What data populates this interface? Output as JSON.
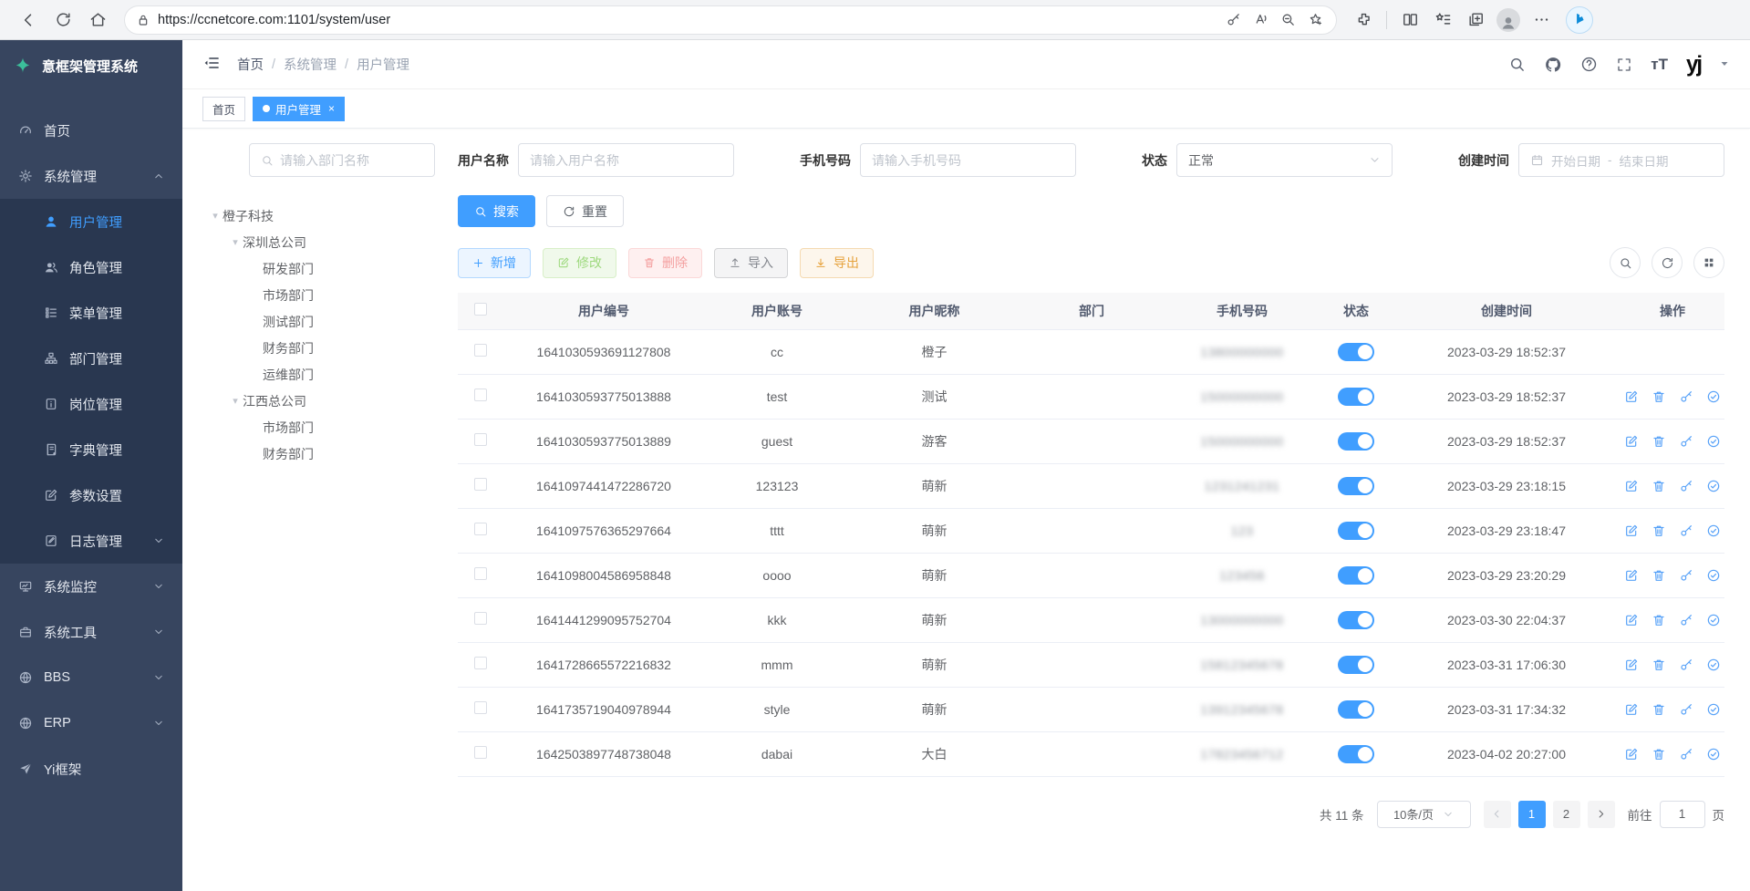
{
  "browser": {
    "url": "https://ccnetcore.com:1101/system/user",
    "left_icons": [
      "back",
      "reload",
      "home"
    ],
    "pill_icons": [
      "key",
      "readaloud",
      "zoomout",
      "starplus"
    ],
    "right_icons": [
      "extensions",
      "split",
      "favbar",
      "collections",
      "profile",
      "dots"
    ]
  },
  "brand": {
    "title": "意框架管理系统"
  },
  "sidebar": {
    "items": [
      {
        "label": "首页",
        "icon": "dashboard"
      },
      {
        "label": "系统管理",
        "icon": "gear",
        "open": true,
        "children": [
          {
            "label": "用户管理",
            "icon": "user",
            "active": true
          },
          {
            "label": "角色管理",
            "icon": "users"
          },
          {
            "label": "菜单管理",
            "icon": "menutree"
          },
          {
            "label": "部门管理",
            "icon": "org"
          },
          {
            "label": "岗位管理",
            "icon": "badge"
          },
          {
            "label": "字典管理",
            "icon": "dict"
          },
          {
            "label": "参数设置",
            "icon": "editsq"
          },
          {
            "label": "日志管理",
            "icon": "log",
            "arrow": "down"
          }
        ]
      },
      {
        "label": "系统监控",
        "icon": "monitor",
        "arrow": "down"
      },
      {
        "label": "系统工具",
        "icon": "tools",
        "arrow": "down"
      },
      {
        "label": "BBS",
        "icon": "globe",
        "arrow": "down"
      },
      {
        "label": "ERP",
        "icon": "globe",
        "arrow": "down"
      },
      {
        "label": "Yi框架",
        "icon": "send"
      }
    ]
  },
  "topbar": {
    "breadcrumb": [
      "首页",
      "系统管理",
      "用户管理"
    ]
  },
  "tabs": [
    {
      "label": "首页",
      "active": false
    },
    {
      "label": "用户管理",
      "active": true,
      "closable": true
    }
  ],
  "filters": {
    "dept_placeholder": "请输入部门名称",
    "username_label": "用户名称",
    "username_placeholder": "请输入用户名称",
    "phone_label": "手机号码",
    "phone_placeholder": "请输入手机号码",
    "status_label": "状态",
    "status_value": "正常",
    "created_label": "创建时间",
    "date_start": "开始日期",
    "date_sep": "-",
    "date_end": "结束日期",
    "search_label": "搜索",
    "reset_label": "重置"
  },
  "tree": [
    {
      "label": "橙子科技",
      "depth": 0,
      "expandable": true
    },
    {
      "label": "深圳总公司",
      "depth": 1,
      "expandable": true
    },
    {
      "label": "研发部门",
      "depth": 2
    },
    {
      "label": "市场部门",
      "depth": 2
    },
    {
      "label": "测试部门",
      "depth": 2
    },
    {
      "label": "财务部门",
      "depth": 2
    },
    {
      "label": "运维部门",
      "depth": 2
    },
    {
      "label": "江西总公司",
      "depth": 1,
      "expandable": true
    },
    {
      "label": "市场部门",
      "depth": 2
    },
    {
      "label": "财务部门",
      "depth": 2
    }
  ],
  "toolbar": {
    "add_label": "新增",
    "edit_label": "修改",
    "delete_label": "删除",
    "import_label": "导入",
    "export_label": "导出"
  },
  "table": {
    "columns": [
      "用户编号",
      "用户账号",
      "用户昵称",
      "部门",
      "手机号码",
      "状态",
      "创建时间",
      "操作"
    ],
    "rows": [
      {
        "id": "1641030593691127808",
        "account": "cc",
        "nickname": "橙子",
        "dept": "",
        "phone": "13800000000",
        "phone_masked": true,
        "status": true,
        "created": "2023-03-29 18:52:37",
        "actions": false
      },
      {
        "id": "1641030593775013888",
        "account": "test",
        "nickname": "测试",
        "dept": "",
        "phone": "15000000000",
        "phone_masked": true,
        "status": true,
        "created": "2023-03-29 18:52:37",
        "actions": true
      },
      {
        "id": "1641030593775013889",
        "account": "guest",
        "nickname": "游客",
        "dept": "",
        "phone": "15000000000",
        "phone_masked": true,
        "status": true,
        "created": "2023-03-29 18:52:37",
        "actions": true
      },
      {
        "id": "1641097441472286720",
        "account": "123123",
        "nickname": "萌新",
        "dept": "",
        "phone": "1231241231",
        "phone_masked": true,
        "status": true,
        "created": "2023-03-29 23:18:15",
        "actions": true
      },
      {
        "id": "1641097576365297664",
        "account": "tttt",
        "nickname": "萌新",
        "dept": "",
        "phone": "123",
        "phone_masked": true,
        "status": true,
        "created": "2023-03-29 23:18:47",
        "actions": true
      },
      {
        "id": "1641098004586958848",
        "account": "oooo",
        "nickname": "萌新",
        "dept": "",
        "phone": "123456",
        "phone_masked": true,
        "status": true,
        "created": "2023-03-29 23:20:29",
        "actions": true
      },
      {
        "id": "1641441299095752704",
        "account": "kkk",
        "nickname": "萌新",
        "dept": "",
        "phone": "13000000000",
        "phone_masked": true,
        "status": true,
        "created": "2023-03-30 22:04:37",
        "actions": true
      },
      {
        "id": "1641728665572216832",
        "account": "mmm",
        "nickname": "萌新",
        "dept": "",
        "phone": "15812345678",
        "phone_masked": true,
        "status": true,
        "created": "2023-03-31 17:06:30",
        "actions": true
      },
      {
        "id": "1641735719040978944",
        "account": "style",
        "nickname": "萌新",
        "dept": "",
        "phone": "13912345678",
        "phone_masked": true,
        "status": true,
        "created": "2023-03-31 17:34:32",
        "actions": true
      },
      {
        "id": "1642503897748738048",
        "account": "dabai",
        "nickname": "大白",
        "dept": "",
        "phone": "17823456712",
        "phone_masked": true,
        "status": true,
        "created": "2023-04-02 20:27:00",
        "actions": true
      }
    ],
    "row_action_icons": [
      "edit-square",
      "trash",
      "key",
      "check-circle"
    ]
  },
  "pagination": {
    "total_text": "共 11 条",
    "page_size": "10条/页",
    "pages": [
      "1",
      "2"
    ],
    "active_page": "1",
    "goto_label": "前往",
    "goto_value": "1",
    "goto_suffix": "页"
  },
  "colors": {
    "accent": "#409eff",
    "sidebar_bg": "#37455f",
    "submenu_bg": "#293750",
    "toggle_on": "#409eff",
    "brand_leaf": "#3bbf9a",
    "bing_blue": "#0c8bd9"
  }
}
